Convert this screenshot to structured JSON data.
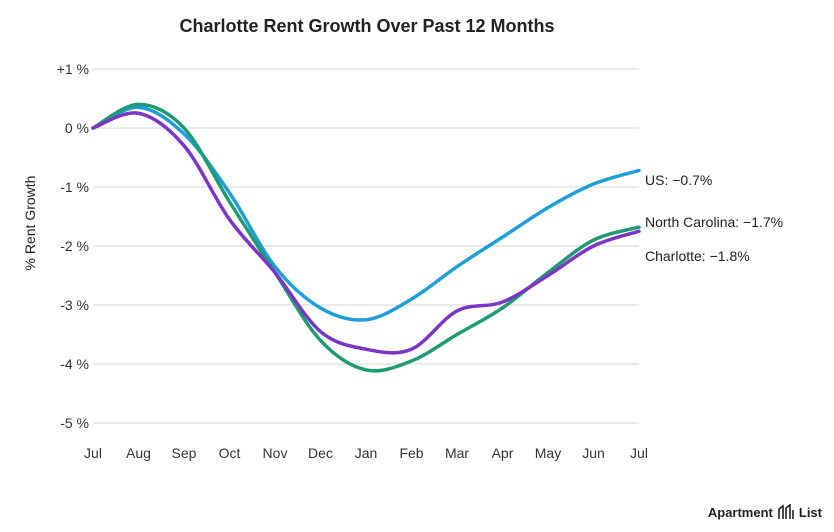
{
  "chart_data": {
    "type": "line",
    "title": "Charlotte Rent Growth Over Past 12 Months",
    "xlabel": "",
    "ylabel": "% Rent Growth",
    "categories": [
      "Jul",
      "Aug",
      "Sep",
      "Oct",
      "Nov",
      "Dec",
      "Jan",
      "Feb",
      "Mar",
      "Apr",
      "May",
      "Jun",
      "Jul"
    ],
    "y_ticks": [
      {
        "value": 1,
        "label": "+1 %"
      },
      {
        "value": 0,
        "label": "0 %"
      },
      {
        "value": -1,
        "label": "-1 %"
      },
      {
        "value": -2,
        "label": "-2 %"
      },
      {
        "value": -3,
        "label": "-3 %"
      },
      {
        "value": -4,
        "label": "-4 %"
      },
      {
        "value": -5,
        "label": "-5 %"
      }
    ],
    "ylim": [
      -5,
      1
    ],
    "grid": "horizontal",
    "series": [
      {
        "name": "US",
        "label": "US: −0.7%",
        "color": "#1e9fd8",
        "values": [
          0.0,
          0.35,
          -0.1,
          -1.1,
          -2.35,
          -3.05,
          -3.25,
          -2.9,
          -2.35,
          -1.85,
          -1.35,
          -0.95,
          -0.72
        ]
      },
      {
        "name": "North Carolina",
        "label": "North Carolina: −1.7%",
        "color": "#1f9b73",
        "values": [
          0.0,
          0.4,
          0.0,
          -1.25,
          -2.45,
          -3.6,
          -4.1,
          -3.95,
          -3.5,
          -3.05,
          -2.45,
          -1.9,
          -1.68
        ]
      },
      {
        "name": "Charlotte",
        "label": "Charlotte: −1.8%",
        "color": "#7c36c6",
        "values": [
          0.0,
          0.25,
          -0.3,
          -1.55,
          -2.45,
          -3.45,
          -3.75,
          -3.75,
          -3.1,
          -2.95,
          -2.5,
          -2.0,
          -1.75
        ]
      }
    ]
  },
  "branding": {
    "text": "Apartment List",
    "icon": "apartment-list-logo-icon"
  }
}
